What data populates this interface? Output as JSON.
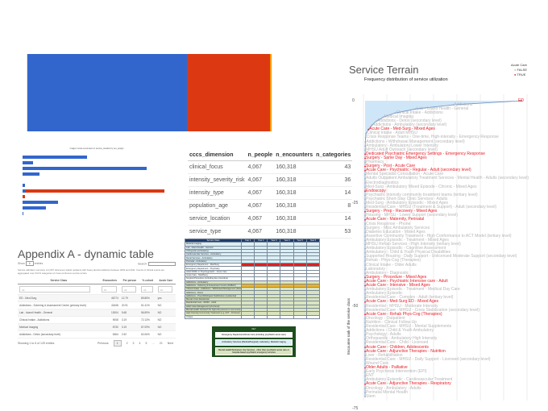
{
  "top_stack": {
    "segments": [
      {
        "share": 0.652,
        "color": "#3366cc"
      },
      {
        "share": 0.342,
        "color": "#dc3912"
      },
      {
        "share": 0.006,
        "color": "#ff9900"
      }
    ]
  },
  "mini_chart": {
    "title": "Images: Acute encounters in service_location by sex_assign",
    "bars": [
      {
        "blue": 0.42,
        "red": 0
      },
      {
        "blue": 0.07,
        "red": 0
      },
      {
        "blue": 0.81,
        "red": 0
      },
      {
        "blue": 0.11,
        "red": 0
      },
      {
        "blue": 0,
        "red": 0
      },
      {
        "blue": 0.015,
        "red": 0
      },
      {
        "blue": 0.015,
        "red": 0.98
      },
      {
        "blue": 0,
        "red": 0.015
      },
      {
        "blue": 0.23,
        "red": 0
      },
      {
        "blue": 0.15,
        "red": 0
      },
      {
        "blue": 0.005,
        "red": 0
      },
      {
        "blue": 0,
        "red": 0
      }
    ],
    "colors": {
      "blue": "#3366cc",
      "red": "#dc3912"
    }
  },
  "dimension_table": {
    "headers": [
      "cccs_dimension",
      "n_people",
      "n_encounters",
      "n_categories"
    ],
    "rows": [
      [
        "clinical_focus",
        "4,067",
        "160,318",
        "43"
      ],
      [
        "intensity_severity_risk",
        "4,067",
        "160,318",
        "36"
      ],
      [
        "intensity_type",
        "4,067",
        "160,318",
        "14"
      ],
      [
        "population_age",
        "4,067",
        "160,318",
        "8"
      ],
      [
        "service_location",
        "4,067",
        "160,318",
        "14"
      ],
      [
        "service_type",
        "4,067",
        "160,318",
        "53"
      ]
    ]
  },
  "appendix": {
    "title": "Appendix A - dynamic table",
    "show": "Show",
    "entries_value": "6",
    "entries": "entries",
    "search_label": "Search:",
    "description": "Service utilization summary of 4,067 Vancouver Island residents with heavy alcohol addiction between 2002 and 2011. Counts of clinical events are aggregated over CCCS categories of cross-continuum service terrain.",
    "headers": [
      "Service Class",
      "Encounters",
      "Per person",
      "% cohort",
      "Acute Care"
    ],
    "filter_placeholder": "All",
    "rows": [
      [
        "ED - Med-Surg",
        "46774",
        "12.79",
        "89.85%",
        "yes"
      ],
      [
        "Addictions - Sobering & Assessment Centre (primary level)",
        "41848",
        "20.91",
        "51.41%",
        "NO"
      ],
      [
        "Lab - Island Health - General",
        "13004",
        "5.68",
        "56.89%",
        "NO"
      ],
      [
        "Clinical Intake - Addictions",
        "9008",
        "3.19",
        "72.13%",
        "NO"
      ],
      [
        "Medical Imaging",
        "8730",
        "3.19",
        "67.09%",
        "NO"
      ],
      [
        "Addictions - Detox (secondary level)",
        "6364",
        "2.52",
        "62.06%",
        "NO"
      ]
    ],
    "info": "Showing 1 to 6 of 125 entries",
    "pager": {
      "previous": "Previous",
      "pages": [
        "1",
        "2",
        "3",
        "4",
        "5",
        "…",
        "21"
      ],
      "next": "Next"
    }
  },
  "service_grid": {
    "headers": [
      "Service Class",
      "Year 1",
      "Year 2",
      "Year 3",
      "Year 4",
      "Year 5",
      "Year 6"
    ],
    "rows": [
      {
        "g": "amb",
        "label": "Medical Imaging"
      },
      {
        "g": "amb",
        "label": "Lab - Island Health - General"
      },
      {
        "g": "amb",
        "label": "Orthopedic (ambulatory)"
      },
      {
        "g": "amb",
        "label": "Cardiovascular Services - Ambulatory"
      },
      {
        "g": "amb",
        "label": "Renal Services - Ambulatory"
      },
      {
        "g": "amb",
        "label": "Perinatal - Ambulatory"
      },
      {
        "g": "ed",
        "label": "Emergency Department - Med/Surg",
        "hot": [
          1,
          2,
          3,
          4,
          5,
          6
        ]
      },
      {
        "g": "ed",
        "label": "Emergency Department - Psychiatry"
      },
      {
        "g": "ed",
        "label": "Adult MHSU in Psychogeriatric - Acute Care"
      },
      {
        "g": "ed",
        "label": "Acute Care - Med/Surg"
      },
      {
        "g": "ed",
        "label": "Surgical Procedure (including day procedure)"
      },
      {
        "g": "mh",
        "label": "Addictions - Ambulatory"
      },
      {
        "g": "mh",
        "label": "Addictions - Sobering & Assessment Centre (SOBAC)",
        "warm": [
          1,
          2,
          3,
          4,
          5,
          6
        ]
      },
      {
        "g": "mh",
        "label": "Clinical Intake - Addictions - Withdrawal Management (Detox)"
      },
      {
        "g": "mh",
        "label": "Addictions - Detox"
      },
      {
        "g": "mh",
        "label": "Addictions - Post-Withdrawal Stabilization (residential)"
      },
      {
        "g": "mh",
        "label": "Mental Crisis Residential"
      },
      {
        "g": "mh",
        "label": "Residential Care - MHSU - Adult"
      },
      {
        "g": "mh",
        "label": "Adult Case Management (2nd level)"
      },
      {
        "g": "mh",
        "label": "Mental Health Outreach for high-risk persons in community (3rd level)"
      },
      {
        "g": "mh",
        "label": "High Intensity Community Treatment (e.g. ACT - 3rd level)"
      },
      {
        "g": "uq",
        "label": "Unique"
      }
    ],
    "key": {
      "title": "KEY",
      "items": [
        "Emergency Department/Acute Care (including psychiatric acute care)",
        "Ambulatory Services (Medical/Surgical); Laboratory; Medical Imaging",
        "Mental Health/Substance Use Services - other than psychiatric acute care or hospital-based psychiatric emergency services"
      ]
    }
  },
  "terrain": {
    "title": "Service Terrain",
    "subtitle": "Frequency distribution of service utilization",
    "ylabel": "Encounter rank of the service class",
    "yticks": [
      "0",
      "-25",
      "-50",
      "-75"
    ],
    "legend": {
      "title": "Acute Care",
      "items": [
        {
          "label": "FALSE",
          "color": "#bbbbbb"
        },
        {
          "label": "TRUE",
          "color": "#e8202a"
        }
      ]
    },
    "colors": {
      "true": "#e8202a",
      "false": "#b5b5b5",
      "area": "#cfe6f8"
    },
    "labels": [
      [
        "ED",
        1
      ],
      [
        "Addictions",
        0
      ],
      [
        "Lab - Island Health - General",
        0
      ],
      [
        "Clinical Intake - Addictions",
        0
      ],
      [
        "Medical Imaging",
        0
      ],
      [
        "Addictions - Detox (secondary level)",
        0
      ],
      [
        "Addictions - Ambulatory (secondary level)",
        0
      ],
      [
        "Acute Care - Med-Surg - Mixed Ages",
        1
      ],
      [
        "Clinical Intake - Adult MHSU",
        0
      ],
      [
        "Crisis Response Teams - One-time, High-intensity - Emergency Response",
        0
      ],
      [
        "Addictions - Withdrawal Management (secondary level)",
        0
      ],
      [
        "Ambulatory - Ambulatory Lower Intensity",
        0
      ],
      [
        "MHSU Adult Outreach (secondary level)",
        0
      ],
      [
        "Dedicated Psychiatric Emergency Settings - Emergency Response",
        1
      ],
      [
        "Surgery - Same Day - Mixed Ages",
        1
      ],
      [
        "Pharmacy",
        0
      ],
      [
        "Surgery - Post - Acute Care",
        1
      ],
      [
        "Acute Care - Psychiatric - Regular - Adult (secondary level)",
        1
      ],
      [
        "Mental Specialist Consultation - Acute Care",
        0
      ],
      [
        "Adults Outpatient Ambulatory Treatment Services - Mental Health - Adults (secondary level)",
        0
      ],
      [
        "Electrodiagnostics",
        0
      ],
      [
        "Med-Surg - Ambulatory Mixed Episode - Chronic - Mixed Ages",
        0
      ],
      [
        "Endoscopy",
        1
      ],
      [
        "Psychiatric intensity community treatment teams (tertiary level)",
        0
      ],
      [
        "Psychiatric Short-Stay Clinic Services - Adults",
        0
      ],
      [
        "Med-Surg - Ambulatory Episodic - Mixed Ages",
        0
      ],
      [
        "Residential Care - MHSU (Treatment & Support) - Adult (secondary level)",
        0
      ],
      [
        "Surgery - Prep - Recovery - Mixed Ages",
        1
      ],
      [
        "Housing - MHSU - Lower Support (secondary level)",
        0
      ],
      [
        "Acute Care - Maternity, Perinatal",
        1
      ],
      [
        "Crisis Response - Phone",
        0
      ],
      [
        "Surgery - Misc Ambulatory Services",
        0
      ],
      [
        "Diabetes Education - Mixed Ages",
        0
      ],
      [
        "Assertive Community Treatment - High Conformance to ACT Model (tertiary level)",
        0
      ],
      [
        "Ambulatory Episodic - Treatment - Mixed Ages",
        0
      ],
      [
        "MHSU Rehab Services - High Intensity (tertiary level)",
        0
      ],
      [
        "Ambulatory Episodic - Cognitive Assessment",
        0
      ],
      [
        "Ambulatory - Child & Youth Physical Disabilities",
        0
      ],
      [
        "Supported Housing - Daily Support - Unlicensed Moderate Support (secondary level)",
        0
      ],
      [
        "Rehab - Phys-Cog (Therapies)",
        0
      ],
      [
        "Clinical Intake - Older Adults",
        0
      ],
      [
        "Laboratory",
        0
      ],
      [
        "Ambulatory - Diagnostic",
        0
      ],
      [
        "Surgery - Procedure - Mixed Ages",
        1
      ],
      [
        "Acute Care - Psychiatric Intensive care - Adult",
        1
      ],
      [
        "Acute Care - Intensive - Mixed Ages",
        1
      ],
      [
        "Ambulatory Episodic - Treatment - Medical Day Care",
        0
      ],
      [
        "Ambulatory Episodic",
        0
      ],
      [
        "Residential Care - Complex - Adult (tertiary level)",
        0
      ],
      [
        "Acute Care - Med-Surg ED - Mixed Ages",
        1
      ],
      [
        "Residential - MHSU - Moderate Intensity",
        0
      ],
      [
        "Residential Care - MHSU - Crisis Stabilization (secondary level)",
        0
      ],
      [
        "Acute Care - Rehab Phys-Cog (Therapies)",
        1
      ],
      [
        "Oncology - Outpatient",
        0
      ],
      [
        "Nutrition - Clinical Follow-Up",
        0
      ],
      [
        "Residential Care - MHSU - Mental Supplements",
        0
      ],
      [
        "Addictions - Child & Youth Ambulatory",
        0
      ],
      [
        "Psychology - Adults",
        0
      ],
      [
        "Orthopaedic - Ambulatory High Intensity",
        0
      ],
      [
        "Residential Care - Child - Licensed",
        0
      ],
      [
        "Acute Care - Children, Adolescents",
        1
      ],
      [
        "Acute Care - Adjunctive Therapies - Nutrition",
        1
      ],
      [
        "Liver - Rehabilitation",
        0
      ],
      [
        "Residential Care - MHSU - Daily Support - Licensed (secondary level)",
        0
      ],
      [
        "Wound Care",
        0
      ],
      [
        "Older Adults - Palliative",
        1
      ],
      [
        "Early Psychosis Intervention (EPI)",
        0
      ],
      [
        "ENT",
        0
      ],
      [
        "Ambulatory Episodic - Cardiovascular Treatment",
        0
      ],
      [
        "Acute Care - Adjunctive Therapies - Respiratory",
        1
      ],
      [
        "Oncology - Ambulatory - Adults",
        0
      ],
      [
        "Perinatal Mental Health",
        0
      ],
      [
        "Stem",
        0
      ]
    ]
  }
}
